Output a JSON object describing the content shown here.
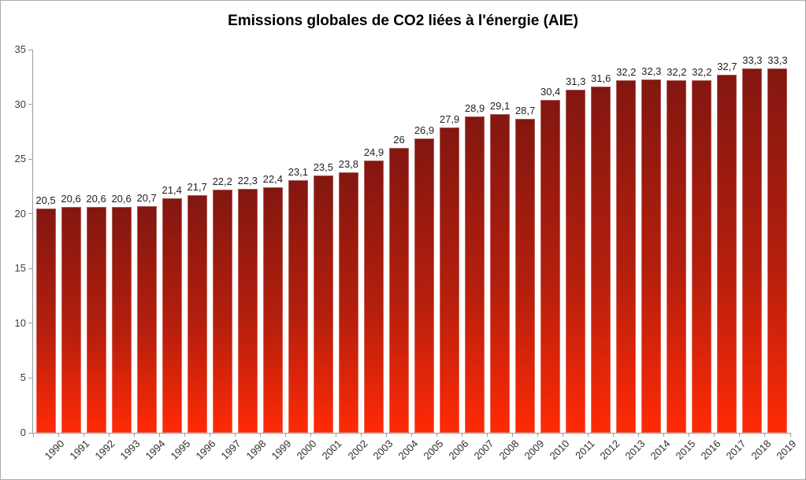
{
  "title": "Emissions globales de CO2 liées à l'énergie (AIE)",
  "chart_data": {
    "type": "bar",
    "title": "Emissions globales de CO2 liées à l'énergie (AIE)",
    "xlabel": "",
    "ylabel": "",
    "categories": [
      "1990",
      "1991",
      "1992",
      "1993",
      "1994",
      "1995",
      "1996",
      "1997",
      "1998",
      "1999",
      "2000",
      "2001",
      "2002",
      "2003",
      "2004",
      "2005",
      "2006",
      "2007",
      "2008",
      "2009",
      "2010",
      "2011",
      "2012",
      "2013",
      "2014",
      "2015",
      "2016",
      "2017",
      "2018",
      "2019"
    ],
    "values": [
      20.5,
      20.6,
      20.6,
      20.6,
      20.7,
      21.4,
      21.7,
      22.2,
      22.3,
      22.4,
      23.1,
      23.5,
      23.8,
      24.9,
      26,
      26.9,
      27.9,
      28.9,
      29.1,
      28.7,
      30.4,
      31.3,
      31.6,
      32.2,
      32.3,
      32.2,
      32.2,
      32.7,
      33.3,
      33.3
    ],
    "value_labels": [
      "20,5",
      "20,6",
      "20,6",
      "20,6",
      "20,7",
      "21,4",
      "21,7",
      "22,2",
      "22,3",
      "22,4",
      "23,1",
      "23,5",
      "23,8",
      "24,9",
      "26",
      "26,9",
      "27,9",
      "28,9",
      "29,1",
      "28,7",
      "30,4",
      "31,3",
      "31,6",
      "32,2",
      "32,3",
      "32,2",
      "32,2",
      "32,7",
      "33,3",
      "33,3"
    ],
    "ylim": [
      0,
      35
    ],
    "yticks": [
      0,
      5,
      10,
      15,
      20,
      25,
      30,
      35
    ],
    "grid": false,
    "legend": null,
    "decimal_separator": ","
  },
  "colors": {
    "bar_gradient_top": "#821710",
    "bar_gradient_mid": "#b51f0d",
    "bar_gradient_bottom": "#ff2a06",
    "axis": "#9a9a9a",
    "tick_label": "#3d3d3d",
    "data_label": "#1f1f1f",
    "title": "#000000",
    "frame_border": "#ababab",
    "background": "#ffffff"
  }
}
